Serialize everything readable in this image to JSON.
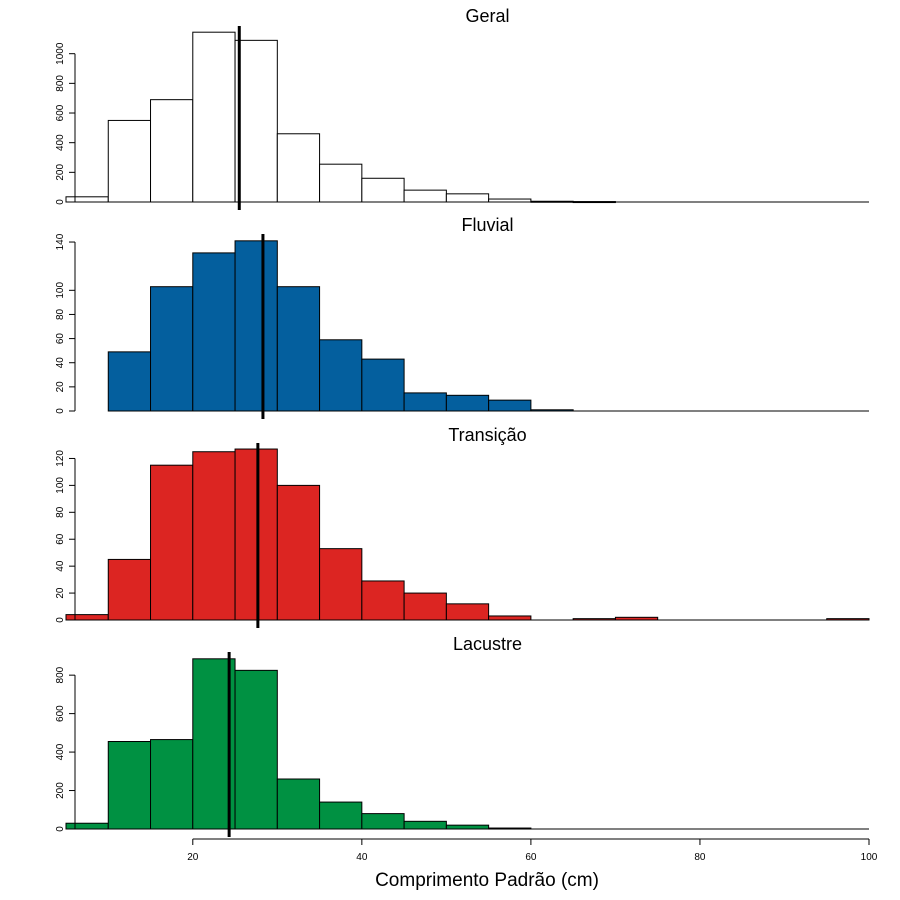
{
  "figure": {
    "xlabel": "Comprimento Padrão (cm)",
    "xlim": [
      5,
      100
    ],
    "xticks": [
      20,
      40,
      60,
      80,
      100
    ],
    "bin_width": 5
  },
  "chart_data": [
    {
      "type": "bar",
      "title": "Geral",
      "color": "#ffffff",
      "bin_starts": [
        5,
        10,
        15,
        20,
        25,
        30,
        35,
        40,
        45,
        50,
        55,
        60,
        65,
        70,
        75,
        80,
        85,
        90,
        95
      ],
      "values": [
        35,
        550,
        690,
        1145,
        1090,
        460,
        255,
        160,
        80,
        55,
        20,
        5,
        3,
        0,
        0,
        0,
        0,
        0,
        0
      ],
      "ylim": [
        0,
        1180
      ],
      "yticks": [
        0,
        200,
        400,
        600,
        800,
        1000
      ],
      "mean": 25.5,
      "xlabel": "",
      "ylabel": ""
    },
    {
      "type": "bar",
      "title": "Fluvial",
      "color": "#045f9e",
      "bin_starts": [
        10,
        15,
        20,
        25,
        30,
        35,
        40,
        45,
        50,
        55,
        60,
        65,
        70,
        75,
        80,
        85,
        90,
        95
      ],
      "values": [
        49,
        103,
        131,
        141,
        103,
        59,
        43,
        15,
        13,
        9,
        1,
        0,
        0,
        0,
        0,
        0,
        0,
        0
      ],
      "ylim": [
        0,
        145
      ],
      "yticks": [
        0,
        20,
        40,
        60,
        80,
        100,
        140
      ],
      "mean": 28.3,
      "xlabel": "",
      "ylabel": ""
    },
    {
      "type": "bar",
      "title": "Transição",
      "color": "#dc2522",
      "bin_starts": [
        5,
        10,
        15,
        20,
        25,
        30,
        35,
        40,
        45,
        50,
        55,
        60,
        65,
        70,
        75,
        80,
        85,
        90,
        95
      ],
      "values": [
        4,
        45,
        115,
        125,
        127,
        100,
        53,
        29,
        20,
        12,
        3,
        0,
        1,
        2,
        0,
        0,
        0,
        0,
        1
      ],
      "ylim": [
        0,
        130
      ],
      "yticks": [
        0,
        20,
        40,
        60,
        80,
        100,
        120
      ],
      "mean": 27.7,
      "xlabel": "",
      "ylabel": ""
    },
    {
      "type": "bar",
      "title": "Lacustre",
      "color": "#009142",
      "bin_starts": [
        5,
        10,
        15,
        20,
        25,
        30,
        35,
        40,
        45,
        50,
        55,
        60,
        65,
        70,
        75,
        80,
        85,
        90,
        95
      ],
      "values": [
        30,
        455,
        465,
        885,
        825,
        260,
        140,
        80,
        40,
        20,
        5,
        0,
        0,
        0,
        0,
        0,
        0,
        0,
        0
      ],
      "ylim": [
        0,
        910
      ],
      "yticks": [
        0,
        200,
        400,
        600,
        800
      ],
      "mean": 24.3,
      "xlabel": "",
      "ylabel": ""
    }
  ]
}
